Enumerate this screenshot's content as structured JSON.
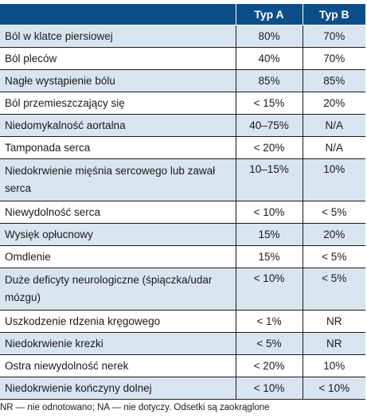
{
  "header": {
    "col1": "",
    "col2": "Typ A",
    "col3": "Typ B"
  },
  "rows": [
    {
      "label": "Ból w klatce piersiowej",
      "a": "80%",
      "b": "70%"
    },
    {
      "label": "Ból pleców",
      "a": "40%",
      "b": "70%"
    },
    {
      "label": "Nagłe wystąpienie bólu",
      "a": "85%",
      "b": "85%"
    },
    {
      "label": "Ból przemieszczający się",
      "a": "< 15%",
      "b": "20%"
    },
    {
      "label": "Niedomykalność aortalna",
      "a": "40–75%",
      "b": "N/A"
    },
    {
      "label": "Tamponada serca",
      "a": "< 20%",
      "b": "N/A"
    },
    {
      "label": "Niedokrwienie mięśnia sercowego lub zawał serca",
      "a": "10–15%",
      "b": "10%"
    },
    {
      "label": "Niewydolność serca",
      "a": "< 10%",
      "b": "< 5%"
    },
    {
      "label": "Wysięk opłucnowy",
      "a": "15%",
      "b": "20%"
    },
    {
      "label": "Omdlenie",
      "a": "15%",
      "b": "< 5%"
    },
    {
      "label": "Duże deficyty neurologiczne (śpiączka/udar mózgu)",
      "a": "< 10%",
      "b": "< 5%"
    },
    {
      "label": "Uszkodzenie rdzenia kręgowego",
      "a": "< 1%",
      "b": "NR"
    },
    {
      "label": "Niedokrwienie krezki",
      "a": "< 5%",
      "b": "NR"
    },
    {
      "label": "Ostra niewydolność nerek",
      "a": "< 20%",
      "b": "10%"
    },
    {
      "label": "Niedokrwienie kończyny dolnej",
      "a": "< 10%",
      "b": "< 10%"
    }
  ],
  "footnote": "NR — nie odnotowano; NA — nie dotyczy. Odsetki są zaokrąglone",
  "colors": {
    "header_bg": "#0c4e8a",
    "stripe_bg": "#d9e4f1"
  }
}
